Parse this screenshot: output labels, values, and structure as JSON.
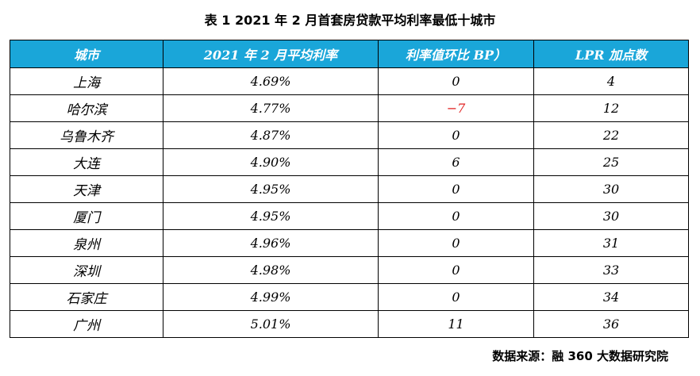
{
  "title": "表 1  2021 年 2 月首套房贷款平均利率最低十城市",
  "colors": {
    "header_background": "#1AA6D9",
    "header_text": "#FFFFFF",
    "negative_value": "#E02020"
  },
  "table": {
    "headers": [
      "城市",
      "2021 年 2 月平均利率",
      "利率值环比 BP）",
      "LPR 加点数"
    ],
    "rows": [
      {
        "city": "上海",
        "rate": "4.69%",
        "bp_change": "0",
        "lpr_points": "4"
      },
      {
        "city": "哈尔滨",
        "rate": "4.77%",
        "bp_change": "−7",
        "lpr_points": "12"
      },
      {
        "city": "乌鲁木齐",
        "rate": "4.87%",
        "bp_change": "0",
        "lpr_points": "22"
      },
      {
        "city": "大连",
        "rate": "4.90%",
        "bp_change": "6",
        "lpr_points": "25"
      },
      {
        "city": "天津",
        "rate": "4.95%",
        "bp_change": "0",
        "lpr_points": "30"
      },
      {
        "city": "厦门",
        "rate": "4.95%",
        "bp_change": "0",
        "lpr_points": "30"
      },
      {
        "city": "泉州",
        "rate": "4.96%",
        "bp_change": "0",
        "lpr_points": "31"
      },
      {
        "city": "深圳",
        "rate": "4.98%",
        "bp_change": "0",
        "lpr_points": "33"
      },
      {
        "city": "石家庄",
        "rate": "4.99%",
        "bp_change": "0",
        "lpr_points": "34"
      },
      {
        "city": "广州",
        "rate": "5.01%",
        "bp_change": "11",
        "lpr_points": "36"
      }
    ]
  },
  "source": "数据来源：融 360 大数据研究院"
}
